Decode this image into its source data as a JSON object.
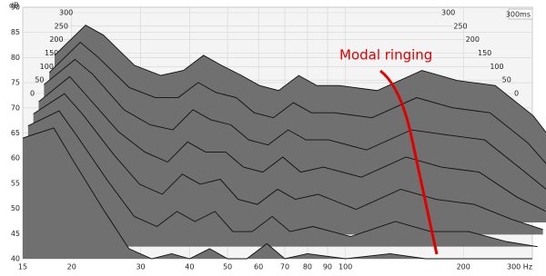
{
  "chart_data": {
    "type": "waterfall",
    "y_label": "dB",
    "annotation": "Modal ringing",
    "time_label": "300ms",
    "x": [
      15,
      18,
      20,
      24,
      28,
      32,
      36,
      40,
      45,
      50,
      56,
      63,
      70,
      80,
      100,
      130,
      160,
      200,
      250,
      300
    ],
    "xlim": [
      15,
      300
    ],
    "xticks": [
      15,
      20,
      30,
      40,
      50,
      60,
      70,
      80,
      90,
      100,
      200,
      {
        "value": 300,
        "label": "300 Hz"
      }
    ],
    "ylim": [
      40,
      90
    ],
    "yticks": [
      40,
      45,
      50,
      55,
      60,
      65,
      70,
      75,
      80,
      85,
      90
    ],
    "zlim": [
      0,
      300
    ],
    "zticks": [
      0,
      50,
      100,
      150,
      200,
      250,
      300
    ],
    "grid": true,
    "color": "#707070",
    "slices": [
      {
        "time": 0,
        "values": [
          66,
          72,
          70,
          64,
          62,
          63,
          66,
          64,
          62,
          60,
          59,
          62,
          60,
          60,
          59,
          63,
          61,
          60,
          54,
          46
        ]
      },
      {
        "time": 50,
        "values": [
          65,
          71,
          68,
          62,
          60,
          60,
          63,
          61,
          60,
          57,
          56,
          59,
          57,
          57,
          56,
          60,
          58,
          57,
          51,
          44
        ]
      },
      {
        "time": 100,
        "values": [
          65,
          70,
          67,
          60,
          57,
          56,
          60,
          58,
          57,
          54,
          53,
          56,
          54,
          54,
          52,
          56,
          55,
          54,
          48,
          43
        ]
      },
      {
        "time": 150,
        "values": [
          64,
          69,
          65,
          58,
          54,
          52,
          56,
          54,
          54,
          51,
          50,
          53,
          50,
          51,
          49,
          53,
          51,
          50,
          45,
          42
        ]
      },
      {
        "time": 200,
        "values": [
          64,
          68,
          64,
          56,
          50,
          48,
          52,
          50,
          51,
          47,
          46,
          49,
          47,
          48,
          45,
          49,
          47,
          46,
          43,
          41
        ]
      },
      {
        "time": 250,
        "values": [
          64,
          67,
          62,
          53,
          46,
          44,
          47,
          45,
          47,
          43,
          43,
          46,
          43,
          44,
          42,
          45,
          43,
          43,
          41,
          40
        ]
      },
      {
        "time": 300,
        "values": [
          64,
          66,
          60,
          50,
          42,
          40,
          41,
          40,
          42,
          40,
          40,
          43,
          40,
          41,
          40,
          41,
          40,
          40,
          40,
          40
        ]
      }
    ]
  }
}
